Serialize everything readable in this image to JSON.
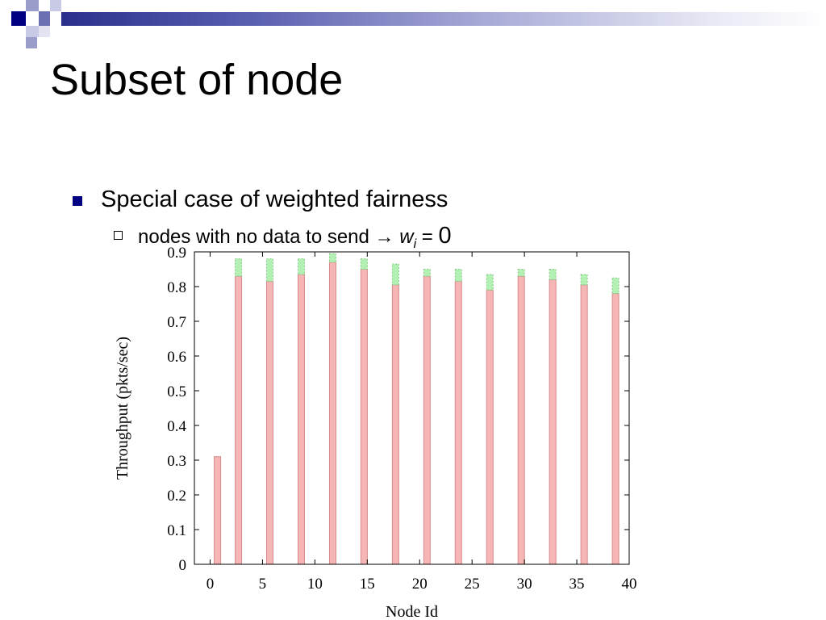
{
  "slide": {
    "title": "Subset of node",
    "bullet_level1": "Special case of weighted fairness",
    "bullet_level2": {
      "prefix": "nodes with no data to send → ",
      "var": "w",
      "subscript": "i",
      "equals": " = ",
      "value": "0"
    }
  },
  "colors": {
    "banner": "#2b2f8c",
    "bullet": "#000080",
    "bar_primary": "#f7b6b6",
    "bar_primary_edge": "#d98a8a",
    "bar_secondary": "#b3f0b3",
    "bar_secondary_edge": "#86c986"
  },
  "chart_data": {
    "type": "bar",
    "stacked": true,
    "xlabel": "Node Id",
    "ylabel": "Throughput (pkts/sec)",
    "xlim": [
      -1.5,
      40
    ],
    "ylim": [
      0,
      0.9
    ],
    "xticks": [
      0,
      5,
      10,
      15,
      20,
      25,
      30,
      35,
      40
    ],
    "yticks": [
      0,
      0.1,
      0.2,
      0.3,
      0.4,
      0.5,
      0.6,
      0.7,
      0.8,
      0.9
    ],
    "ytick_labels": [
      "0",
      "0.1",
      "0.2",
      "0.3",
      "0.4",
      "0.5",
      "0.6",
      "0.7",
      "0.8",
      "0.9"
    ],
    "x": [
      0.7,
      2.7,
      5.7,
      8.7,
      11.7,
      14.7,
      17.7,
      20.7,
      23.7,
      26.7,
      29.7,
      32.7,
      35.7,
      38.7
    ],
    "series": [
      {
        "values": [
          0.31,
          0.83,
          0.815,
          0.835,
          0.87,
          0.85,
          0.805,
          0.83,
          0.815,
          0.79,
          0.83,
          0.82,
          0.805,
          0.78
        ]
      },
      {
        "values": [
          0.0,
          0.05,
          0.065,
          0.045,
          0.025,
          0.03,
          0.06,
          0.02,
          0.035,
          0.045,
          0.02,
          0.03,
          0.03,
          0.045
        ]
      }
    ]
  }
}
